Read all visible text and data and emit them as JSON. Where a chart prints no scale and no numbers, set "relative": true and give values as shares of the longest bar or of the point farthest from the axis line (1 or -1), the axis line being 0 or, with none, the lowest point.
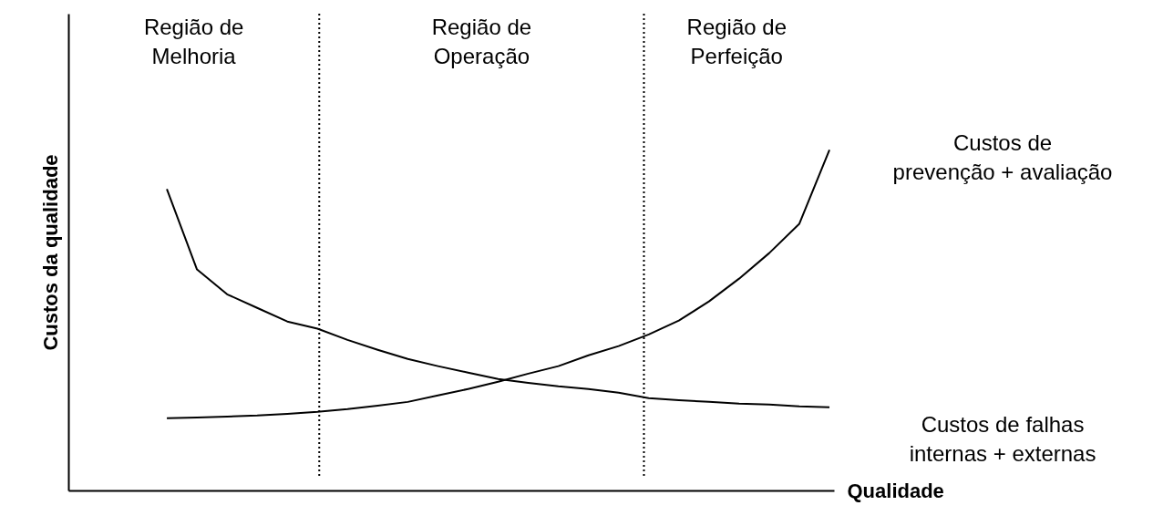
{
  "chart_data": {
    "type": "line",
    "relative": true,
    "xlabel": "Qualidade",
    "ylabel": "Custos da qualidade",
    "tick_labels": false,
    "grid": false,
    "legend": false,
    "marker": "none",
    "line_style": "solid",
    "categories": [
      null,
      null,
      null,
      null,
      null,
      null,
      null,
      null,
      null,
      null,
      null,
      null,
      null,
      null,
      null,
      null,
      null,
      null,
      null,
      null,
      null,
      null,
      null
    ],
    "series": [
      {
        "name": "Custos de\nprevenção + avaliação",
        "color": "#000000",
        "values": [
          0.212,
          0.214,
          0.217,
          0.22,
          0.225,
          0.231,
          0.239,
          0.249,
          0.26,
          0.279,
          0.298,
          0.319,
          0.343,
          0.365,
          0.397,
          0.424,
          0.458,
          0.499,
          0.555,
          0.622,
          0.697,
          0.783,
          1.0
        ]
      },
      {
        "name": "Custos de falhas\ninternas + externas",
        "color": "#000000",
        "values": [
          0.885,
          0.649,
          0.576,
          0.536,
          0.496,
          0.475,
          0.442,
          0.413,
          0.386,
          0.365,
          0.346,
          0.327,
          0.316,
          0.306,
          0.298,
          0.287,
          0.271,
          0.265,
          0.26,
          0.255,
          0.252,
          0.247,
          0.244
        ]
      }
    ],
    "annotations": [
      "Região de\nMelhoria",
      "Região de\nOperação",
      "Região de\nPerfeição"
    ]
  }
}
